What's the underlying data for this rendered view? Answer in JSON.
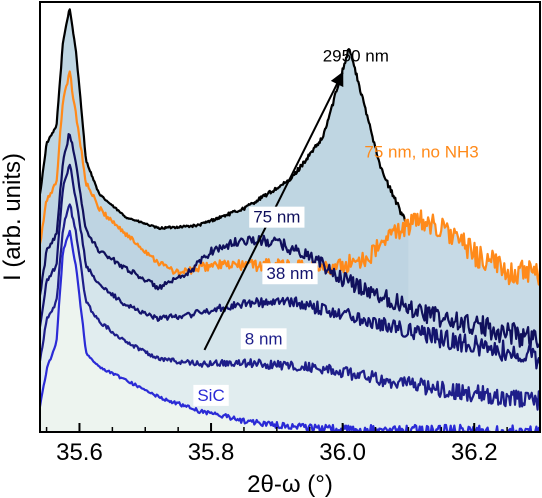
{
  "chart_data": {
    "type": "line",
    "title": "",
    "xlabel": "2θ-ω (°)",
    "ylabel": "I (arb. units)",
    "xlim": [
      35.54,
      36.3
    ],
    "x_ticks": [
      "35.6",
      "35.8",
      "36.0",
      "36.2"
    ],
    "x_tick_values": [
      35.6,
      35.8,
      36.0,
      36.2
    ],
    "y_ticks": [],
    "grid": false,
    "legend": "none",
    "series": [
      {
        "name": "SiC",
        "color": "#2b2bd6",
        "fill": "#eef4ee",
        "noise": 0.1,
        "points": [
          [
            35.54,
            0.45
          ],
          [
            35.55,
            1.1
          ],
          [
            35.565,
            1.6
          ],
          [
            35.575,
            3.2
          ],
          [
            35.585,
            3.55
          ],
          [
            35.595,
            2.9
          ],
          [
            35.61,
            1.4
          ],
          [
            35.63,
            1.15
          ],
          [
            35.67,
            0.92
          ],
          [
            35.72,
            0.62
          ],
          [
            35.78,
            0.38
          ],
          [
            35.85,
            0.2
          ],
          [
            35.9,
            0.12
          ],
          [
            36.0,
            0.05
          ],
          [
            36.3,
            0.0
          ]
        ]
      },
      {
        "name": "8 nm",
        "color": "#1e1e8a",
        "fill": "#e3eef0",
        "noise": 0.14,
        "points": [
          [
            35.54,
            1.25
          ],
          [
            35.55,
            2.0
          ],
          [
            35.565,
            2.3
          ],
          [
            35.575,
            3.6
          ],
          [
            35.585,
            4.05
          ],
          [
            35.595,
            3.5
          ],
          [
            35.61,
            2.3
          ],
          [
            35.63,
            1.95
          ],
          [
            35.67,
            1.6
          ],
          [
            35.72,
            1.3
          ],
          [
            35.78,
            1.2
          ],
          [
            35.85,
            1.22
          ],
          [
            35.95,
            1.15
          ],
          [
            36.05,
            0.95
          ],
          [
            36.15,
            0.75
          ],
          [
            36.3,
            0.55
          ]
        ]
      },
      {
        "name": "38 nm",
        "color": "#14146e",
        "fill": "#d7e6ec",
        "noise": 0.16,
        "points": [
          [
            35.54,
            1.85
          ],
          [
            35.55,
            2.65
          ],
          [
            35.565,
            2.95
          ],
          [
            35.575,
            4.3
          ],
          [
            35.585,
            4.75
          ],
          [
            35.595,
            4.1
          ],
          [
            35.61,
            2.95
          ],
          [
            35.63,
            2.6
          ],
          [
            35.67,
            2.25
          ],
          [
            35.72,
            2.0
          ],
          [
            35.78,
            2.1
          ],
          [
            35.85,
            2.28
          ],
          [
            35.92,
            2.3
          ],
          [
            36.0,
            2.1
          ],
          [
            36.08,
            1.85
          ],
          [
            36.15,
            1.65
          ],
          [
            36.3,
            1.3
          ]
        ]
      },
      {
        "name": "75 nm",
        "color": "#10105c",
        "fill": "#c8dbe5",
        "noise": 0.18,
        "points": [
          [
            35.54,
            2.4
          ],
          [
            35.55,
            3.2
          ],
          [
            35.565,
            3.5
          ],
          [
            35.575,
            4.8
          ],
          [
            35.585,
            5.3
          ],
          [
            35.595,
            4.7
          ],
          [
            35.61,
            3.55
          ],
          [
            35.63,
            3.2
          ],
          [
            35.67,
            2.9
          ],
          [
            35.72,
            2.55
          ],
          [
            35.76,
            2.75
          ],
          [
            35.8,
            3.2
          ],
          [
            35.85,
            3.4
          ],
          [
            35.9,
            3.35
          ],
          [
            35.95,
            3.1
          ],
          [
            36.0,
            2.7
          ],
          [
            36.06,
            2.4
          ],
          [
            36.15,
            2.0
          ],
          [
            36.3,
            1.65
          ]
        ]
      },
      {
        "name": "75 nm, no NH3",
        "color": "#ff8a1a",
        "fill": "#bdd4e2",
        "noise": 0.2,
        "points": [
          [
            35.54,
            3.3
          ],
          [
            35.55,
            4.1
          ],
          [
            35.565,
            4.4
          ],
          [
            35.575,
            5.9
          ],
          [
            35.585,
            6.35
          ],
          [
            35.595,
            5.6
          ],
          [
            35.61,
            4.4
          ],
          [
            35.63,
            3.95
          ],
          [
            35.67,
            3.5
          ],
          [
            35.72,
            3.0
          ],
          [
            35.75,
            2.8
          ],
          [
            35.8,
            2.95
          ],
          [
            35.9,
            2.95
          ],
          [
            35.99,
            2.9
          ],
          [
            36.04,
            3.1
          ],
          [
            36.08,
            3.55
          ],
          [
            36.12,
            3.75
          ],
          [
            36.16,
            3.55
          ],
          [
            36.2,
            3.15
          ],
          [
            36.25,
            2.85
          ],
          [
            36.3,
            2.75
          ]
        ]
      },
      {
        "name": "2950 nm",
        "color": "#000000",
        "fill": "#b4cfdd",
        "noise": 0.06,
        "points": [
          [
            35.54,
            4.2
          ],
          [
            35.55,
            5.1
          ],
          [
            35.565,
            5.4
          ],
          [
            35.575,
            6.9
          ],
          [
            35.585,
            7.5
          ],
          [
            35.595,
            6.7
          ],
          [
            35.61,
            4.8
          ],
          [
            35.63,
            4.2
          ],
          [
            35.67,
            3.8
          ],
          [
            35.72,
            3.6
          ],
          [
            35.78,
            3.65
          ],
          [
            35.85,
            3.95
          ],
          [
            35.92,
            4.45
          ],
          [
            35.97,
            5.2
          ],
          [
            36.0,
            6.4
          ],
          [
            36.01,
            6.8
          ],
          [
            36.03,
            5.9
          ],
          [
            36.06,
            4.6
          ],
          [
            36.09,
            3.85
          ],
          [
            36.1,
            3.7
          ]
        ]
      }
    ],
    "annotations": [
      {
        "text": "2950 nm",
        "x": 36.02,
        "y": 6.55,
        "color": "#000000",
        "box": false
      },
      {
        "text": "75 nm, no NH3",
        "x": 36.12,
        "y": 4.85,
        "color": "#ff8a1a",
        "box": false
      },
      {
        "text": "75 nm",
        "x": 35.9,
        "y": 3.7,
        "color": "#10105c",
        "box": true
      },
      {
        "text": "38 nm",
        "x": 35.92,
        "y": 2.7,
        "color": "#14146e",
        "box": true
      },
      {
        "text": "8 nm",
        "x": 35.88,
        "y": 1.55,
        "color": "#1e1e8a",
        "box": true
      },
      {
        "text": "SiC",
        "x": 35.8,
        "y": 0.55,
        "color": "#2b2bd6",
        "box": true
      }
    ],
    "arrow": {
      "from": [
        35.79,
        1.45
      ],
      "to": [
        36.0,
        6.35
      ]
    }
  }
}
